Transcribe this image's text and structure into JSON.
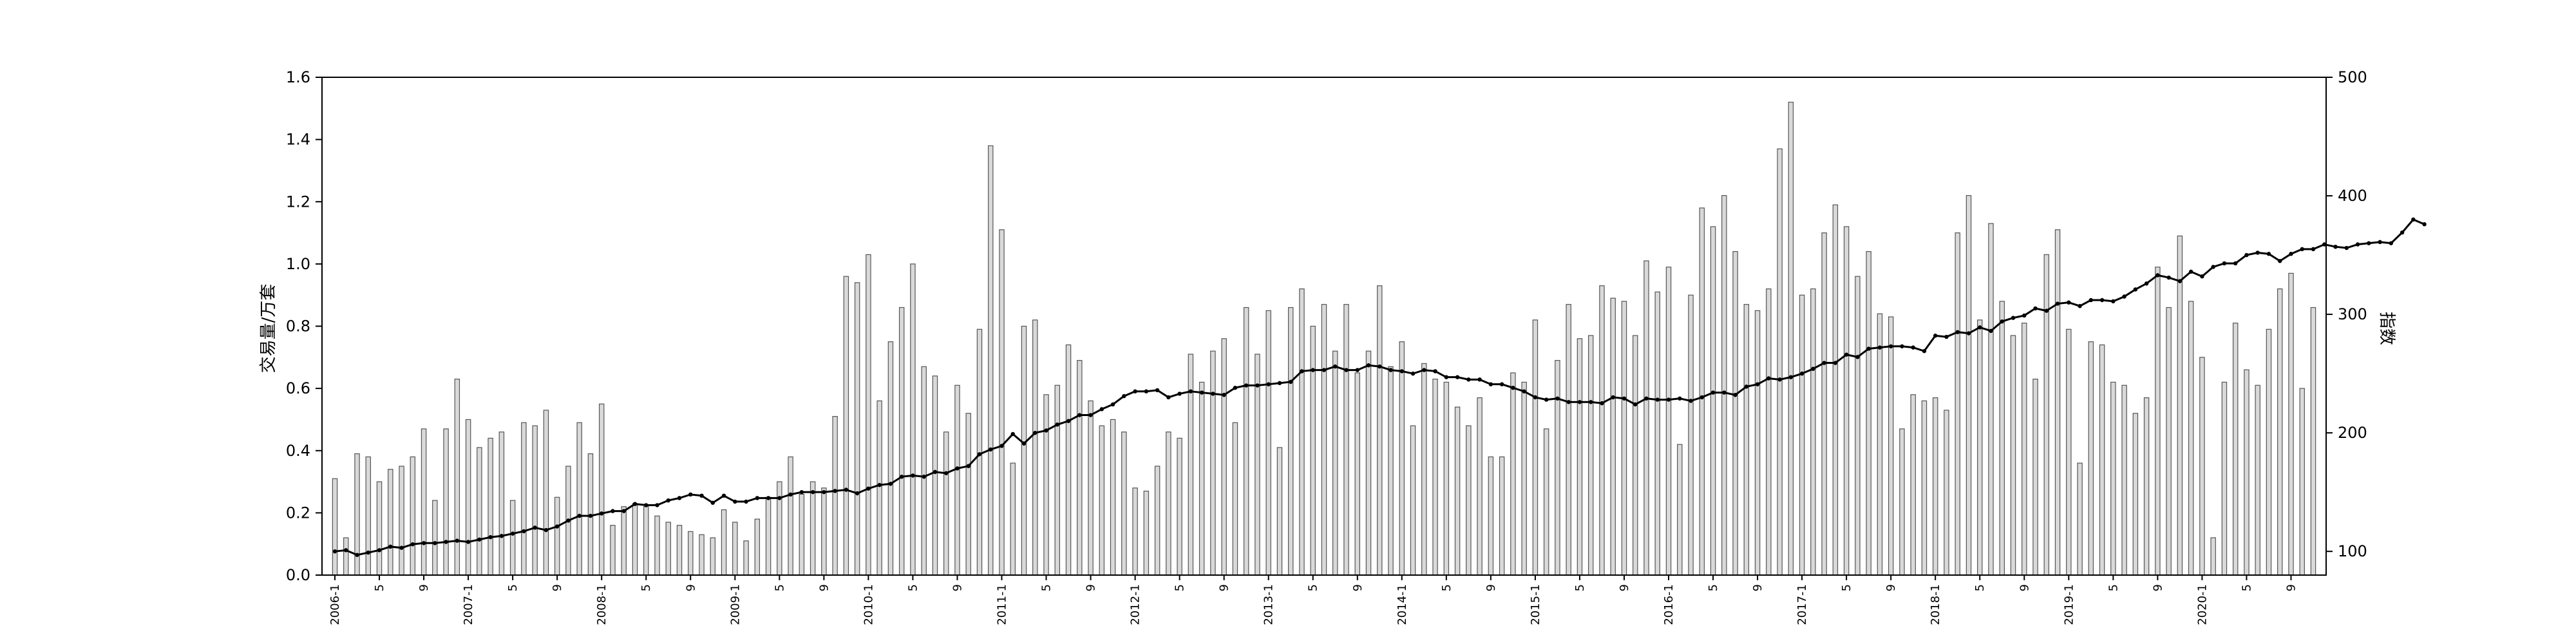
{
  "chart_data": {
    "type": "bar+line",
    "title": "",
    "ylabel_left": "交易量/万套",
    "ylabel_right": "指数",
    "ylim_left": [
      0,
      1.6
    ],
    "ylim_right": [
      80,
      500
    ],
    "yticks_left": [
      "0.0",
      "0.2",
      "0.4",
      "0.6",
      "0.8",
      "1.0",
      "1.2",
      "1.4",
      "1.6"
    ],
    "yticks_right": [
      "100",
      "200",
      "300",
      "400",
      "500"
    ],
    "x_tick_labels": [
      "2006-1",
      "5",
      "9",
      "2007-1",
      "5",
      "9",
      "2008-1",
      "5",
      "9",
      "2009-1",
      "5",
      "9",
      "2010-1",
      "5",
      "9",
      "2011-1",
      "5",
      "9",
      "2012-1",
      "5",
      "9",
      "2013-1",
      "5",
      "9",
      "2014-1",
      "5",
      "9",
      "2015-1",
      "5",
      "9",
      "2016-1",
      "5",
      "9",
      "2017-1",
      "5",
      "9",
      "2018-1",
      "5",
      "9",
      "2019-1",
      "5",
      "9",
      "2020-1",
      "5",
      "9"
    ],
    "grid": false,
    "bar_color": "#d9d9d9",
    "bar_edge_color": "#555555",
    "line_color": "#000000",
    "series": [
      {
        "name": "交易量",
        "axis": "left",
        "kind": "bar",
        "values": [
          0.31,
          0.12,
          0.39,
          0.38,
          0.3,
          0.34,
          0.35,
          0.38,
          0.47,
          0.24,
          0.47,
          0.63,
          0.5,
          0.41,
          0.44,
          0.46,
          0.24,
          0.49,
          0.48,
          0.53,
          0.25,
          0.35,
          0.49,
          0.39,
          0.55,
          0.16,
          0.22,
          0.23,
          0.22,
          0.19,
          0.17,
          0.16,
          0.14,
          0.13,
          0.12,
          0.21,
          0.17,
          0.11,
          0.18,
          0.25,
          0.3,
          0.38,
          0.26,
          0.3,
          0.28,
          0.51,
          0.96,
          0.94,
          1.03,
          0.56,
          0.75,
          0.86,
          1.0,
          0.67,
          0.64,
          0.46,
          0.61,
          0.52,
          0.79,
          1.38,
          1.11,
          0.36,
          0.8,
          0.82,
          0.58,
          0.61,
          0.74,
          0.69,
          0.56,
          0.48,
          0.5,
          0.46,
          0.28,
          0.27,
          0.35,
          0.46,
          0.44,
          0.71,
          0.62,
          0.72,
          0.76,
          0.49,
          0.86,
          0.71,
          0.85,
          0.41,
          0.86,
          0.92,
          0.8,
          0.87,
          0.72,
          0.87,
          0.65,
          0.72,
          0.93,
          0.67,
          0.75,
          0.48,
          0.68,
          0.63,
          0.62,
          0.54,
          0.48,
          0.57,
          0.38,
          0.38,
          0.65,
          0.62,
          0.82,
          0.47,
          0.69,
          0.87,
          0.76,
          0.77,
          0.93,
          0.89,
          0.88,
          0.77,
          1.01,
          0.91,
          0.99,
          0.42,
          0.9,
          1.18,
          1.12,
          1.22,
          1.04,
          0.87,
          0.85,
          0.92,
          1.37,
          1.52,
          0.9,
          0.92,
          1.1,
          1.19,
          1.12,
          0.96,
          1.04,
          0.84,
          0.83,
          0.47,
          0.58,
          0.56,
          0.57,
          0.53,
          1.1,
          1.22,
          0.82,
          1.13,
          0.88,
          0.77,
          0.81,
          0.63,
          1.03,
          1.11,
          0.79,
          0.36,
          0.75,
          0.74,
          0.62,
          0.61,
          0.52,
          0.57,
          0.99,
          0.86,
          1.09,
          0.88,
          0.7,
          0.12,
          0.62,
          0.81,
          0.66,
          0.61,
          0.79,
          0.92,
          0.97,
          0.6,
          0.86
        ]
      },
      {
        "name": "指数",
        "axis": "right",
        "kind": "line",
        "values": [
          100,
          101,
          97,
          99,
          101,
          104,
          103,
          106,
          107,
          107,
          108,
          109,
          108,
          110,
          112,
          113,
          115,
          117,
          120,
          118,
          121,
          126,
          130,
          130,
          132,
          134,
          134,
          140,
          139,
          139,
          143,
          145,
          148,
          147,
          141,
          147,
          142,
          142,
          145,
          145,
          145,
          148,
          150,
          150,
          150,
          151,
          152,
          149,
          153,
          156,
          157,
          163,
          164,
          163,
          167,
          166,
          170,
          172,
          182,
          186,
          189,
          199,
          191,
          200,
          202,
          207,
          210,
          215,
          215,
          220,
          224,
          231,
          235,
          235,
          236,
          230,
          233,
          235,
          234,
          233,
          232,
          238,
          240,
          240,
          241,
          242,
          243,
          252,
          253,
          253,
          256,
          253,
          253,
          257,
          256,
          253,
          252,
          250,
          253,
          252,
          247,
          247,
          245,
          245,
          241,
          241,
          238,
          235,
          230,
          228,
          229,
          226,
          226,
          226,
          225,
          230,
          229,
          224,
          229,
          228,
          228,
          229,
          227,
          230,
          234,
          234,
          232,
          239,
          241,
          246,
          245,
          247,
          250,
          254,
          259,
          259,
          266,
          264,
          271,
          272,
          273,
          273,
          272,
          269,
          282,
          281,
          285,
          284,
          289,
          286,
          294,
          297,
          299,
          305,
          303,
          309,
          310,
          307,
          312,
          312,
          311,
          315,
          321,
          326,
          333,
          331,
          328,
          336,
          332,
          340,
          343,
          343,
          350,
          352,
          351,
          345,
          351,
          355,
          355,
          359,
          357,
          356,
          359,
          360,
          361,
          360,
          369,
          380,
          376
        ]
      }
    ]
  }
}
